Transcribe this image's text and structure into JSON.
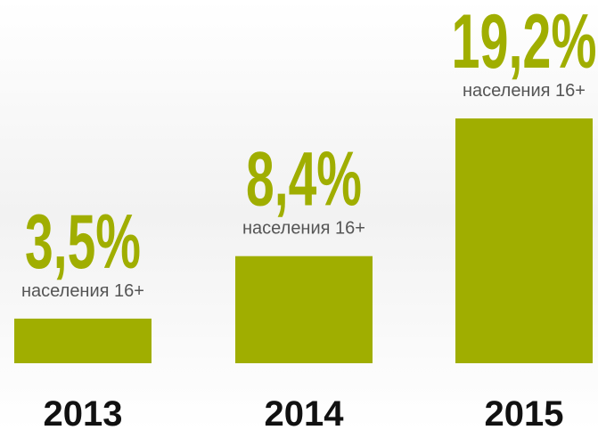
{
  "chart_data": {
    "type": "bar",
    "categories": [
      "2013",
      "2014",
      "2015"
    ],
    "values": [
      3.5,
      8.4,
      19.2
    ],
    "value_labels": [
      "3,5%",
      "8,4%",
      "19,2%"
    ],
    "value_sublabel": "населения 16+",
    "color": "#a0ae00"
  }
}
